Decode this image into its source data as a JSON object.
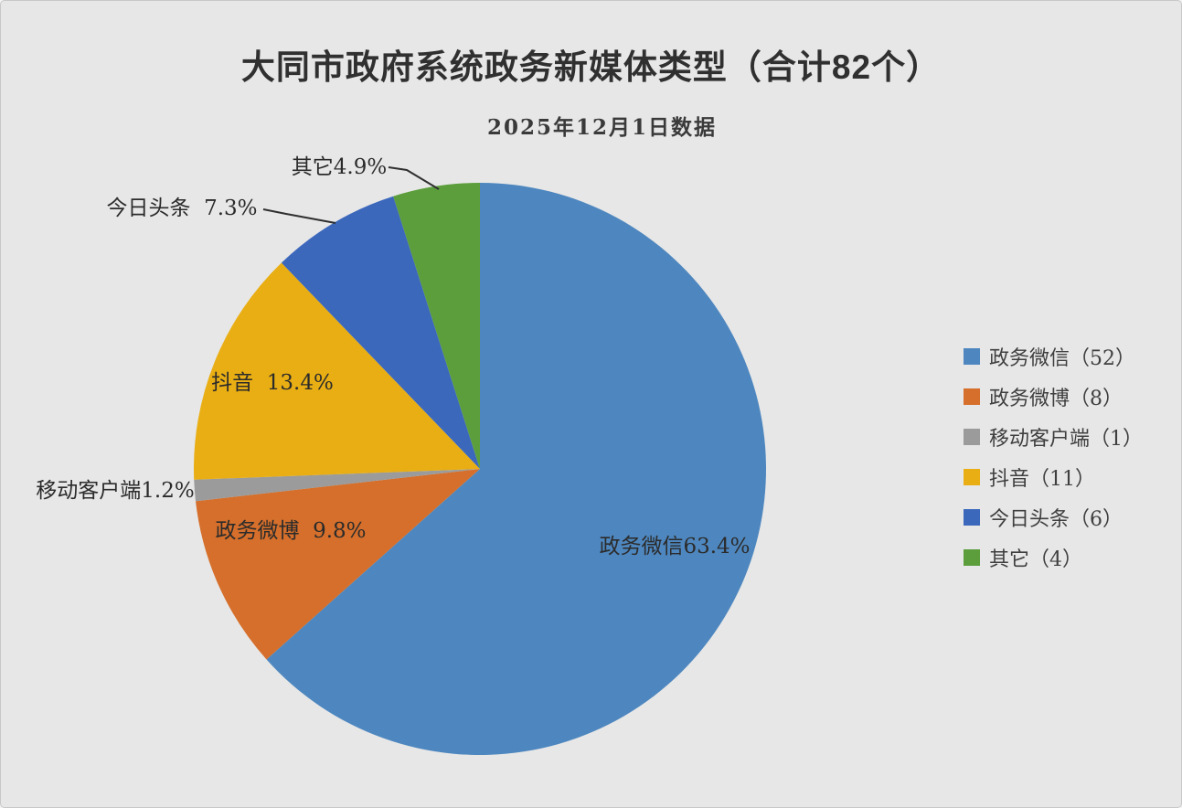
{
  "header": {
    "title": "大同市政府系统政务新媒体类型（合计82个）",
    "subtitle": "2025年12月1日数据"
  },
  "colors": {
    "background": "#e7e7e7",
    "border": "#c8c8c8",
    "title_text": "#303030",
    "label_text": "#2b2b2b",
    "legend_text": "#3f3f3f",
    "leader_line": "#2f2f2f"
  },
  "chart_data": {
    "type": "pie",
    "title": "大同市政府系统政务新媒体类型（合计82个）",
    "subtitle": "2025年12月1日数据",
    "total": 82,
    "unit": "个",
    "start_angle_deg": 0,
    "direction": "clockwise",
    "legend_position": "right",
    "slices": [
      {
        "key": "wechat",
        "name": "政务微信",
        "count": 52,
        "percent": 63.4,
        "label": "政务微信63.4%",
        "legend_label": "政务微信（52）",
        "color": "#4e87bf",
        "label_placement": "inside"
      },
      {
        "key": "weibo",
        "name": "政务微博",
        "count": 8,
        "percent": 9.8,
        "label": "政务微博  9.8%",
        "legend_label": "政务微博（8）",
        "color": "#d56f2b",
        "label_placement": "inside"
      },
      {
        "key": "mobile-app",
        "name": "移动客户端",
        "count": 1,
        "percent": 1.2,
        "label": "移动客户端1.2%",
        "legend_label": "移动客户端（1）",
        "color": "#9b9b9b",
        "label_placement": "outside"
      },
      {
        "key": "douyin",
        "name": "抖音",
        "count": 11,
        "percent": 13.4,
        "label": "抖音  13.4%",
        "legend_label": "抖音（11）",
        "color": "#e9ae13",
        "label_placement": "inside"
      },
      {
        "key": "toutiao",
        "name": "今日头条",
        "count": 6,
        "percent": 7.3,
        "label": "今日头条  7.3%",
        "legend_label": "今日头条（6）",
        "color": "#3c68bc",
        "label_placement": "outside"
      },
      {
        "key": "other",
        "name": "其它",
        "count": 4,
        "percent": 4.9,
        "label": "其它4.9%",
        "legend_label": "其它（4）",
        "color": "#5c9e3c",
        "label_placement": "outside"
      }
    ]
  }
}
